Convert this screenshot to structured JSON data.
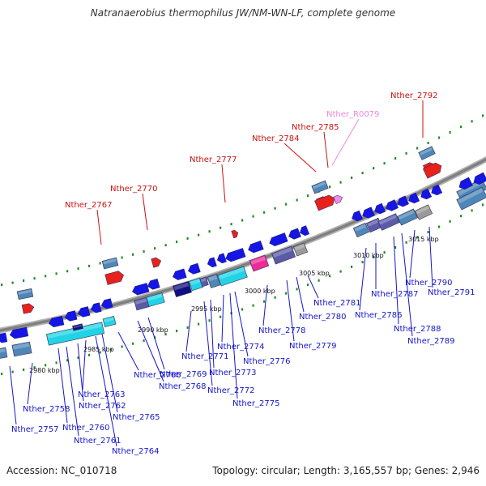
{
  "title": "Natranaerobius thermophilus JW/NM-WN-LF, complete genome",
  "footer": {
    "accession": "Accession: NC_010718",
    "summary": "Topology: circular; Length: 3,165,557 bp; Genes: 2,946"
  },
  "ticks": [
    "2980 kbp",
    "2985 kbp",
    "2990 kbp",
    "2995 kbp",
    "3000 kbp",
    "3005 kbp",
    "3010 kbp",
    "3015 kbp"
  ],
  "colors": {
    "backbone": "#808080",
    "forward_gene": "#e8221a",
    "rna_gene": "#f08ce8",
    "reverse_gene": "#1515e6",
    "cds_box": "#4f86b8",
    "cyan_box": "#22d3e6",
    "navy_box": "#101080",
    "slate_box": "#5a5aa8",
    "magenta_box": "#ee2a9a",
    "gray_box": "#9a9a9a",
    "dot": "#228b22",
    "label_blue": "#1515cc",
    "label_red": "#cc1111",
    "label_pink": "#ee88dd"
  },
  "top_labels": [
    "Nther_2767",
    "Nther_2770",
    "Nther_2777",
    "Nther_2784",
    "Nther_2785",
    "Nther_R0079",
    "Nther_2792"
  ],
  "bottom_labels": [
    "Nther_2757",
    "Nther_2758",
    "Nther_2760",
    "Nther_2761",
    "Nther_2762",
    "Nther_2763",
    "Nther_2764",
    "Nther_2765",
    "Nther_2766",
    "Nther_2768",
    "Nther_2769",
    "Nther_2771",
    "Nther_2772",
    "Nther_2773",
    "Nther_2774",
    "Nther_2775",
    "Nther_2776",
    "Nther_2778",
    "Nther_2779",
    "Nther_2780",
    "Nther_2781",
    "Nther_2786",
    "Nther_2787",
    "Nther_2788",
    "Nther_2789",
    "Nther_2790",
    "Nther_2791"
  ]
}
